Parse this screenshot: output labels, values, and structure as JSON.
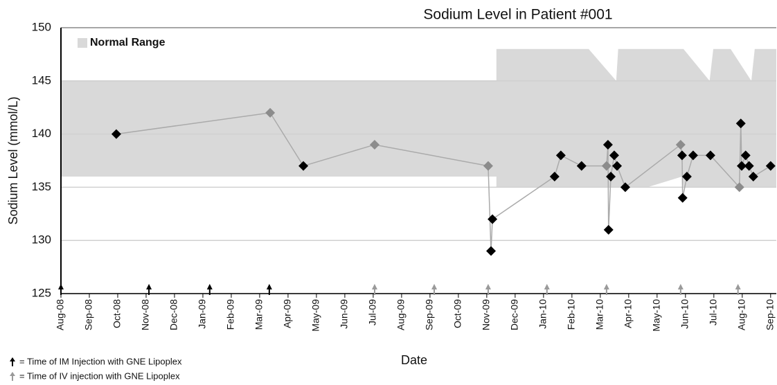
{
  "chart_data": {
    "type": "line",
    "title": "Sodium Level in Patient #001",
    "x_label": "Date",
    "y_label": "Sodium Level (mmol/L)",
    "xlim": [
      0,
      25.2
    ],
    "xticks": [
      {
        "value": 0,
        "label": "Aug-08"
      },
      {
        "value": 1,
        "label": "Sep-08"
      },
      {
        "value": 2,
        "label": "Oct-08"
      },
      {
        "value": 3,
        "label": "Nov-08"
      },
      {
        "value": 4,
        "label": "Dec-08"
      },
      {
        "value": 5,
        "label": "Jan-09"
      },
      {
        "value": 6,
        "label": "Feb-09"
      },
      {
        "value": 7,
        "label": "Mar-09"
      },
      {
        "value": 8,
        "label": "Apr-09"
      },
      {
        "value": 9,
        "label": "May-09"
      },
      {
        "value": 10,
        "label": "Jun-09"
      },
      {
        "value": 11,
        "label": "Jul-09"
      },
      {
        "value": 12,
        "label": "Aug-09"
      },
      {
        "value": 13,
        "label": "Sep-09"
      },
      {
        "value": 14,
        "label": "Oct-09"
      },
      {
        "value": 15,
        "label": "Nov-09"
      },
      {
        "value": 16,
        "label": "Dec-09"
      },
      {
        "value": 17,
        "label": "Jan-10"
      },
      {
        "value": 18,
        "label": "Feb-10"
      },
      {
        "value": 19,
        "label": "Mar-10"
      },
      {
        "value": 20,
        "label": "Apr-10"
      },
      {
        "value": 21,
        "label": "May-10"
      },
      {
        "value": 22,
        "label": "Jun-10"
      },
      {
        "value": 23,
        "label": "Jul-10"
      },
      {
        "value": 24,
        "label": "Aug-10"
      },
      {
        "value": 25,
        "label": "Sep-10"
      }
    ],
    "ylim": [
      125,
      150
    ],
    "yticks": [
      125,
      130,
      135,
      140,
      145,
      150
    ],
    "grid": true,
    "normal_range": {
      "name": "Normal Range",
      "color": "#d9d9d9",
      "x": [
        0,
        15.34,
        15.34,
        18.59,
        19.56,
        19.63,
        20.66,
        21.88,
        21.93,
        22.85,
        22.98,
        23.59,
        24.32,
        24.44,
        25.2
      ],
      "upper": [
        145,
        145,
        148,
        148,
        145,
        148,
        148,
        148,
        148,
        145,
        148,
        148,
        145,
        148,
        148
      ],
      "lower": [
        136,
        136,
        135,
        135,
        135,
        135,
        135,
        136,
        135,
        135,
        135,
        135,
        135,
        135,
        135
      ]
    },
    "series": [
      {
        "line_color": "#aaaaaa",
        "x": [
          1.95,
          7.37,
          8.54,
          11.05,
          15.05,
          15.15,
          15.2,
          17.39,
          17.61,
          18.34,
          19.22,
          19.27,
          19.29,
          19.37,
          19.49,
          19.59,
          19.88,
          21.83,
          21.88,
          21.9,
          22.05,
          22.27,
          22.88,
          23.9,
          23.95,
          23.98,
          24.12,
          24.24,
          24.39,
          25.0
        ],
        "values": [
          140,
          142,
          137,
          139,
          137,
          129,
          132,
          136,
          138,
          137,
          137,
          139,
          131,
          136,
          138,
          137,
          135,
          139,
          138,
          134,
          136,
          138,
          138,
          135,
          141,
          137,
          138,
          137,
          136,
          137
        ],
        "marker_colors": [
          "#000000",
          "#8c8c8c",
          "#000000",
          "#8c8c8c",
          "#8c8c8c",
          "#000000",
          "#000000",
          "#000000",
          "#000000",
          "#000000",
          "#8c8c8c",
          "#000000",
          "#000000",
          "#000000",
          "#000000",
          "#000000",
          "#000000",
          "#8c8c8c",
          "#000000",
          "#000000",
          "#000000",
          "#000000",
          "#000000",
          "#8c8c8c",
          "#000000",
          "#000000",
          "#000000",
          "#000000",
          "#000000",
          "#000000"
        ]
      }
    ],
    "injections": [
      {
        "name": "= Time of IM Injection with GNE Lipoplex",
        "color": "#000000",
        "x": [
          0,
          3.1,
          5.24,
          7.34
        ]
      },
      {
        "name": "= Time of IV injection with GNE Lipoplex",
        "color": "#9a9a9a",
        "x": [
          11.05,
          13.15,
          15.05,
          17.12,
          19.22,
          21.83,
          23.85
        ]
      }
    ]
  }
}
